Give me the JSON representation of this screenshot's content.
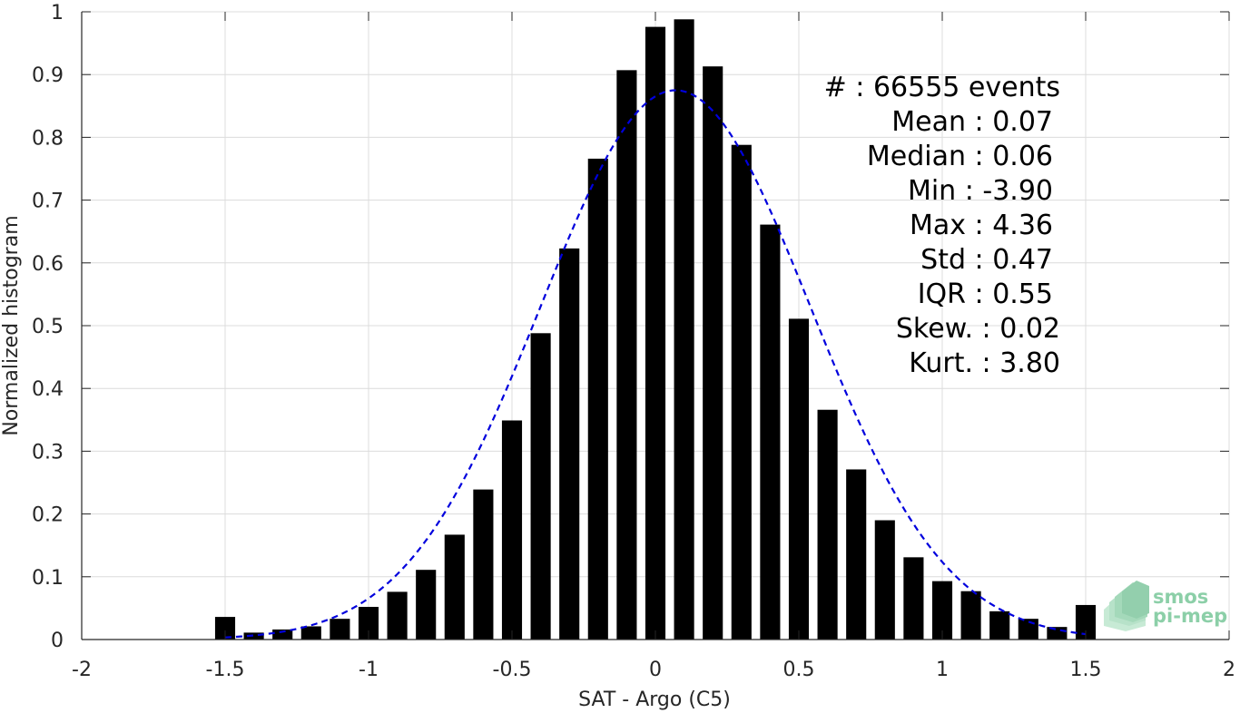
{
  "chart_data": {
    "type": "bar",
    "title": "",
    "xlabel": "SAT - Argo (C5)",
    "ylabel": "Normalized histogram",
    "xlim": [
      -2,
      2
    ],
    "ylim": [
      0,
      1
    ],
    "grid": true,
    "xticks": [
      -2,
      -1.5,
      -1,
      -0.5,
      0,
      0.5,
      1,
      1.5,
      2
    ],
    "xtick_labels": [
      "-2",
      "-1.5",
      "-1",
      "-0.5",
      "0",
      "0.5",
      "1",
      "1.5",
      "2"
    ],
    "yticks": [
      0,
      0.1,
      0.2,
      0.3,
      0.4,
      0.5,
      0.6,
      0.7,
      0.8,
      0.9,
      1
    ],
    "ytick_labels": [
      "0",
      "0.1",
      "0.2",
      "0.3",
      "0.4",
      "0.5",
      "0.6",
      "0.7",
      "0.8",
      "0.9",
      "1"
    ],
    "bar_width": 0.07,
    "bar_color": "#000000",
    "bins": {
      "x": [
        -1.5,
        -1.4,
        -1.3,
        -1.2,
        -1.1,
        -1.0,
        -0.9,
        -0.8,
        -0.7,
        -0.6,
        -0.5,
        -0.4,
        -0.3,
        -0.2,
        -0.1,
        0.0,
        0.1,
        0.2,
        0.3,
        0.4,
        0.5,
        0.6,
        0.7,
        0.8,
        0.9,
        1.0,
        1.1,
        1.2,
        1.3,
        1.4,
        1.5
      ],
      "values": [
        0.036,
        0.011,
        0.016,
        0.021,
        0.033,
        0.052,
        0.076,
        0.111,
        0.167,
        0.239,
        0.349,
        0.488,
        0.623,
        0.766,
        0.907,
        0.976,
        0.988,
        0.913,
        0.788,
        0.661,
        0.511,
        0.366,
        0.271,
        0.19,
        0.131,
        0.093,
        0.077,
        0.045,
        0.033,
        0.02,
        0.055
      ]
    },
    "fit_curve": {
      "type": "gaussian",
      "mean": 0.07,
      "std": 0.47,
      "peak": 0.875,
      "x_range": [
        -1.5,
        1.5
      ],
      "color": "#0000dd",
      "style": "dashed"
    },
    "stats": [
      {
        "label": "#  ",
        "value": ": 66555 events"
      },
      {
        "label": "Mean ",
        "value": ": 0.07"
      },
      {
        "label": "Median ",
        "value": ": 0.06"
      },
      {
        "label": "Min ",
        "value": ": -3.90"
      },
      {
        "label": "Max ",
        "value": ": 4.36"
      },
      {
        "label": "Std ",
        "value": ": 0.47"
      },
      {
        "label": "IQR ",
        "value": ": 0.55"
      },
      {
        "label": "Skew. ",
        "value": ": 0.02"
      },
      {
        "label": "Kurt. ",
        "value": ": 3.80"
      }
    ],
    "stats_lines": [
      "#  : 66555 events",
      "Mean : 0.07",
      "Median : 0.06",
      "Min : -3.90",
      "Max : 4.36",
      "Std : 0.47",
      "IQR : 0.55",
      "Skew. : 0.02",
      "Kurt. : 3.80"
    ]
  },
  "logo": {
    "line1": "smos",
    "line2": "pi-mep",
    "color": "#8ccfa8"
  }
}
